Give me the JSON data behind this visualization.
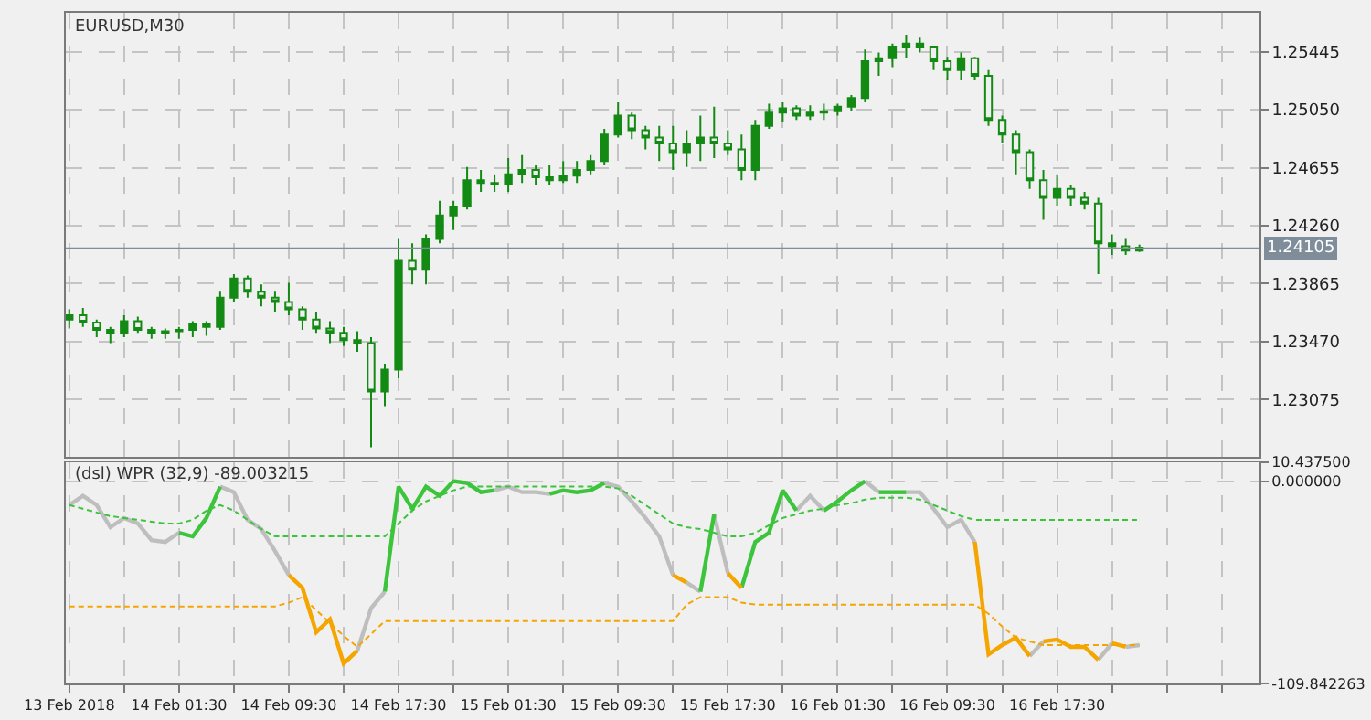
{
  "chart_data": [
    {
      "type": "candlestick",
      "title": "EURUSD,M30",
      "x": [
        "2018-02-13T17:30",
        "2018-02-13T18:30",
        "2018-02-13T19:30",
        "2018-02-13T20:30",
        "2018-02-13T21:30",
        "2018-02-13T22:30",
        "2018-02-13T23:30",
        "2018-02-14T00:30",
        "2018-02-14T01:30",
        "2018-02-14T02:30",
        "2018-02-14T03:30",
        "2018-02-14T04:30",
        "2018-02-14T05:30",
        "2018-02-14T06:30",
        "2018-02-14T07:30",
        "2018-02-14T08:30",
        "2018-02-14T09:30",
        "2018-02-14T10:30",
        "2018-02-14T11:30",
        "2018-02-14T12:30",
        "2018-02-14T13:30",
        "2018-02-14T14:30",
        "2018-02-14T15:30",
        "2018-02-14T16:30",
        "2018-02-14T17:30",
        "2018-02-14T18:30",
        "2018-02-14T19:30",
        "2018-02-14T20:30",
        "2018-02-14T21:30",
        "2018-02-14T22:30",
        "2018-02-14T23:30",
        "2018-02-15T00:30",
        "2018-02-15T01:30",
        "2018-02-15T02:30",
        "2018-02-15T03:30",
        "2018-02-15T04:30",
        "2018-02-15T05:30",
        "2018-02-15T06:30",
        "2018-02-15T07:30",
        "2018-02-15T08:30",
        "2018-02-15T09:30",
        "2018-02-15T10:30",
        "2018-02-15T11:30",
        "2018-02-15T12:30",
        "2018-02-15T13:30",
        "2018-02-15T14:30",
        "2018-02-15T15:30",
        "2018-02-15T16:30",
        "2018-02-15T17:30",
        "2018-02-15T18:30",
        "2018-02-15T19:30",
        "2018-02-15T20:30",
        "2018-02-15T21:30",
        "2018-02-15T22:30",
        "2018-02-15T23:30",
        "2018-02-16T00:30",
        "2018-02-16T01:30",
        "2018-02-16T02:30",
        "2018-02-16T03:30",
        "2018-02-16T04:30",
        "2018-02-16T05:30",
        "2018-02-16T06:30",
        "2018-02-16T07:30",
        "2018-02-16T08:30",
        "2018-02-16T09:30",
        "2018-02-16T10:30",
        "2018-02-16T11:30",
        "2018-02-16T12:30",
        "2018-02-16T13:30",
        "2018-02-16T14:30",
        "2018-02-16T15:30",
        "2018-02-16T16:30",
        "2018-02-16T17:30",
        "2018-02-16T18:30",
        "2018-02-16T19:30",
        "2018-02-16T20:30",
        "2018-02-16T21:30",
        "2018-02-16T22:30",
        "2018-02-16T23:30"
      ],
      "ohlc": [
        [
          1.2362,
          1.2369,
          1.2356,
          1.2365
        ],
        [
          1.2365,
          1.237,
          1.2357,
          1.236
        ],
        [
          1.236,
          1.2362,
          1.235,
          1.2355
        ],
        [
          1.2355,
          1.2357,
          1.2346,
          1.2353
        ],
        [
          1.2353,
          1.2365,
          1.235,
          1.2361
        ],
        [
          1.2361,
          1.2364,
          1.2353,
          1.2355
        ],
        [
          1.2355,
          1.2357,
          1.2349,
          1.2353
        ],
        [
          1.2353,
          1.2356,
          1.2349,
          1.2354
        ],
        [
          1.2354,
          1.2357,
          1.2349,
          1.2355
        ],
        [
          1.2355,
          1.2361,
          1.235,
          1.2359
        ],
        [
          1.2359,
          1.2361,
          1.2351,
          1.2357
        ],
        [
          1.2357,
          1.2381,
          1.2355,
          1.2377
        ],
        [
          1.2377,
          1.2393,
          1.2374,
          1.239
        ],
        [
          1.239,
          1.2392,
          1.2377,
          1.2381
        ],
        [
          1.2381,
          1.2386,
          1.2371,
          1.2377
        ],
        [
          1.2377,
          1.2381,
          1.2367,
          1.2374
        ],
        [
          1.2374,
          1.2387,
          1.2365,
          1.2369
        ],
        [
          1.2369,
          1.2371,
          1.2355,
          1.2362
        ],
        [
          1.2362,
          1.2367,
          1.2353,
          1.2356
        ],
        [
          1.2356,
          1.2361,
          1.2346,
          1.2353
        ],
        [
          1.2353,
          1.2357,
          1.2344,
          1.2348
        ],
        [
          1.2348,
          1.2354,
          1.234,
          1.2346
        ],
        [
          1.2346,
          1.235,
          1.2275,
          1.2313
        ],
        [
          1.2313,
          1.2332,
          1.2303,
          1.2328
        ],
        [
          1.2328,
          1.2417,
          1.2322,
          1.2402
        ],
        [
          1.2402,
          1.2414,
          1.2386,
          1.2396
        ],
        [
          1.2396,
          1.242,
          1.2386,
          1.2417
        ],
        [
          1.2417,
          1.2443,
          1.2414,
          1.2433
        ],
        [
          1.2433,
          1.2443,
          1.2423,
          1.2439
        ],
        [
          1.2439,
          1.2466,
          1.2437,
          1.2457
        ],
        [
          1.2457,
          1.2464,
          1.2449,
          1.2455
        ],
        [
          1.2455,
          1.2461,
          1.2449,
          1.2454
        ],
        [
          1.2454,
          1.2472,
          1.2449,
          1.2461
        ],
        [
          1.2461,
          1.2474,
          1.2455,
          1.2464
        ],
        [
          1.2464,
          1.2467,
          1.2454,
          1.2459
        ],
        [
          1.2459,
          1.2467,
          1.2454,
          1.2457
        ],
        [
          1.2457,
          1.247,
          1.2455,
          1.246
        ],
        [
          1.246,
          1.247,
          1.2455,
          1.2464
        ],
        [
          1.2464,
          1.2474,
          1.2461,
          1.247
        ],
        [
          1.247,
          1.2492,
          1.2467,
          1.2488
        ],
        [
          1.2488,
          1.251,
          1.2486,
          1.2501
        ],
        [
          1.2501,
          1.2503,
          1.2485,
          1.2491
        ],
        [
          1.2491,
          1.2494,
          1.2478,
          1.2486
        ],
        [
          1.2486,
          1.2494,
          1.247,
          1.2482
        ],
        [
          1.2482,
          1.2494,
          1.2464,
          1.2476
        ],
        [
          1.2476,
          1.2491,
          1.2466,
          1.2482
        ],
        [
          1.2482,
          1.2501,
          1.247,
          1.2486
        ],
        [
          1.2486,
          1.2507,
          1.2472,
          1.2482
        ],
        [
          1.2482,
          1.2491,
          1.2474,
          1.2478
        ],
        [
          1.2478,
          1.2488,
          1.2457,
          1.2464
        ],
        [
          1.2464,
          1.2498,
          1.2457,
          1.2494
        ],
        [
          1.2494,
          1.2509,
          1.2492,
          1.2503
        ],
        [
          1.2503,
          1.251,
          1.2497,
          1.2506
        ],
        [
          1.2506,
          1.2508,
          1.2498,
          1.2501
        ],
        [
          1.2501,
          1.2508,
          1.2498,
          1.2503
        ],
        [
          1.2503,
          1.2509,
          1.2498,
          1.2504
        ],
        [
          1.2504,
          1.2509,
          1.2501,
          1.2507
        ],
        [
          1.2507,
          1.2515,
          1.2504,
          1.2513
        ],
        [
          1.2513,
          1.2546,
          1.251,
          1.2538
        ],
        [
          1.2538,
          1.2544,
          1.2528,
          1.254
        ],
        [
          1.254,
          1.255,
          1.2534,
          1.2548
        ],
        [
          1.2548,
          1.2556,
          1.254,
          1.255
        ],
        [
          1.255,
          1.2554,
          1.2544,
          1.2548
        ],
        [
          1.2548,
          1.2548,
          1.2532,
          1.2538
        ],
        [
          1.2538,
          1.2541,
          1.2525,
          1.2532
        ],
        [
          1.2532,
          1.2544,
          1.2525,
          1.254
        ],
        [
          1.254,
          1.2541,
          1.2525,
          1.2528
        ],
        [
          1.2528,
          1.2532,
          1.2494,
          1.2498
        ],
        [
          1.2498,
          1.2501,
          1.2482,
          1.2488
        ],
        [
          1.2488,
          1.2491,
          1.2461,
          1.2476
        ],
        [
          1.2476,
          1.2478,
          1.2451,
          1.2457
        ],
        [
          1.2457,
          1.2464,
          1.243,
          1.2445
        ],
        [
          1.2445,
          1.2461,
          1.2439,
          1.2451
        ],
        [
          1.2451,
          1.2454,
          1.2439,
          1.2445
        ],
        [
          1.2445,
          1.2449,
          1.2437,
          1.2441
        ],
        [
          1.2441,
          1.2445,
          1.2393,
          1.2414
        ],
        [
          1.2414,
          1.242,
          1.2406,
          1.2412
        ],
        [
          1.2412,
          1.2417,
          1.2406,
          1.2409
        ],
        [
          1.2409,
          1.2413,
          1.2408,
          1.2411
        ]
      ],
      "color": "#138a13",
      "xlim": [
        "2018-02-13T17:15",
        "2018-02-17T08:15"
      ],
      "xticks": [
        {
          "value": "2018-02-13T17:30",
          "label": null
        },
        {
          "value": "2018-02-13T21:30",
          "label": null
        },
        {
          "value": "2018-02-14T01:30",
          "label": null
        },
        {
          "value": "2018-02-14T05:30",
          "label": null
        },
        {
          "value": "2018-02-14T09:30",
          "label": null
        },
        {
          "value": "2018-02-14T13:30",
          "label": null
        },
        {
          "value": "2018-02-14T17:30",
          "label": null
        },
        {
          "value": "2018-02-14T21:30",
          "label": null
        },
        {
          "value": "2018-02-15T01:30",
          "label": null
        },
        {
          "value": "2018-02-15T05:30",
          "label": null
        },
        {
          "value": "2018-02-15T09:30",
          "label": null
        },
        {
          "value": "2018-02-15T13:30",
          "label": null
        },
        {
          "value": "2018-02-15T17:30",
          "label": null
        },
        {
          "value": "2018-02-15T21:30",
          "label": null
        },
        {
          "value": "2018-02-16T01:30",
          "label": null
        },
        {
          "value": "2018-02-16T05:30",
          "label": null
        },
        {
          "value": "2018-02-16T09:30",
          "label": null
        },
        {
          "value": "2018-02-16T13:30",
          "label": null
        },
        {
          "value": "2018-02-16T17:30",
          "label": null
        },
        {
          "value": "2018-02-16T21:30",
          "label": null
        },
        {
          "value": "2018-02-17T01:30",
          "label": null
        },
        {
          "value": "2018-02-17T05:30",
          "label": null
        }
      ],
      "ylim": [
        1.22687,
        1.2571
      ],
      "yticks": [
        {
          "value": 1.23075,
          "label": "1.23075"
        },
        {
          "value": 1.2347,
          "label": "1.23470"
        },
        {
          "value": 1.23865,
          "label": "1.23865"
        },
        {
          "value": 1.2426,
          "label": "1.24260"
        },
        {
          "value": 1.24655,
          "label": "1.24655"
        },
        {
          "value": 1.2505,
          "label": "1.25050"
        },
        {
          "value": 1.25445,
          "label": "1.25445"
        }
      ],
      "ref_lines": [
        {
          "axis": "y",
          "value": 1.24105,
          "label": "1.24105",
          "color": "#7f8c99"
        }
      ],
      "grid": true,
      "tick_labels": "y"
    },
    {
      "type": "line",
      "title": "(dsl) WPR (32,9) -89.003215",
      "x": [
        "2018-02-13T17:30",
        "2018-02-13T18:30",
        "2018-02-13T19:30",
        "2018-02-13T20:30",
        "2018-02-13T21:30",
        "2018-02-13T22:30",
        "2018-02-13T23:30",
        "2018-02-14T00:30",
        "2018-02-14T01:30",
        "2018-02-14T02:30",
        "2018-02-14T03:30",
        "2018-02-14T04:30",
        "2018-02-14T05:30",
        "2018-02-14T06:30",
        "2018-02-14T07:30",
        "2018-02-14T08:30",
        "2018-02-14T09:30",
        "2018-02-14T10:30",
        "2018-02-14T11:30",
        "2018-02-14T12:30",
        "2018-02-14T13:30",
        "2018-02-14T14:30",
        "2018-02-14T15:30",
        "2018-02-14T16:30",
        "2018-02-14T17:30",
        "2018-02-14T18:30",
        "2018-02-14T19:30",
        "2018-02-14T20:30",
        "2018-02-14T21:30",
        "2018-02-14T22:30",
        "2018-02-14T23:30",
        "2018-02-15T00:30",
        "2018-02-15T01:30",
        "2018-02-15T02:30",
        "2018-02-15T03:30",
        "2018-02-15T04:30",
        "2018-02-15T05:30",
        "2018-02-15T06:30",
        "2018-02-15T07:30",
        "2018-02-15T08:30",
        "2018-02-15T09:30",
        "2018-02-15T10:30",
        "2018-02-15T11:30",
        "2018-02-15T12:30",
        "2018-02-15T13:30",
        "2018-02-15T14:30",
        "2018-02-15T15:30",
        "2018-02-15T16:30",
        "2018-02-15T17:30",
        "2018-02-15T18:30",
        "2018-02-15T19:30",
        "2018-02-15T20:30",
        "2018-02-15T21:30",
        "2018-02-15T22:30",
        "2018-02-15T23:30",
        "2018-02-16T00:30",
        "2018-02-16T01:30",
        "2018-02-16T02:30",
        "2018-02-16T03:30",
        "2018-02-16T04:30",
        "2018-02-16T05:30",
        "2018-02-16T06:30",
        "2018-02-16T07:30",
        "2018-02-16T08:30",
        "2018-02-16T09:30",
        "2018-02-16T10:30",
        "2018-02-16T11:30",
        "2018-02-16T12:30",
        "2018-02-16T13:30",
        "2018-02-16T14:30",
        "2018-02-16T15:30",
        "2018-02-16T16:30",
        "2018-02-16T17:30",
        "2018-02-16T18:30",
        "2018-02-16T19:30",
        "2018-02-16T20:30",
        "2018-02-16T21:30",
        "2018-02-16T22:30",
        "2018-02-16T23:30"
      ],
      "series": [
        {
          "color": "#3cc43c",
          "line_style": "dashed",
          "values": [
            -13,
            -15,
            -17,
            -19,
            -20,
            -21,
            -22,
            -23,
            -23,
            -21,
            -16,
            -13,
            -16,
            -21,
            -26,
            -30,
            -30,
            -30,
            -30,
            -30,
            -30,
            -30,
            -30,
            -30,
            -23,
            -16,
            -11,
            -8,
            -5,
            -3,
            -3,
            -3,
            -3,
            -3,
            -3,
            -3,
            -3,
            -3,
            -3,
            -3,
            -4,
            -8,
            -13,
            -18,
            -23,
            -25,
            -26,
            -28,
            -30,
            -30,
            -28,
            -24,
            -20,
            -18,
            -16,
            -15,
            -13,
            -12,
            -10,
            -9,
            -9,
            -9,
            -10,
            -13,
            -16,
            -19,
            -21,
            -21,
            -21,
            -21,
            -21,
            -21,
            -21,
            -21,
            -21,
            -21,
            -21,
            -21,
            -21
          ]
        },
        {
          "color": "#f5a500",
          "line_style": "dashed",
          "values": [
            -68,
            -68,
            -68,
            -68,
            -68,
            -68,
            -68,
            -68,
            -68,
            -68,
            -68,
            -68,
            -68,
            -68,
            -68,
            -68,
            -66,
            -63,
            -70,
            -77,
            -84,
            -90,
            -83,
            -76,
            -76,
            -76,
            -76,
            -76,
            -76,
            -76,
            -76,
            -76,
            -76,
            -76,
            -76,
            -76,
            -76,
            -76,
            -76,
            -76,
            -76,
            -76,
            -76,
            -76,
            -76,
            -67,
            -63,
            -63,
            -63,
            -66,
            -67,
            -67,
            -67,
            -67,
            -67,
            -67,
            -67,
            -67,
            -67,
            -67,
            -67,
            -67,
            -67,
            -67,
            -67,
            -67,
            -67,
            -72,
            -79,
            -85,
            -87,
            -89,
            -89,
            -89,
            -89,
            -89,
            -89,
            -89,
            -89
          ]
        },
        {
          "color": "#bebebe",
          "x": [
            "2018-02-13T17:30",
            "2018-02-13T18:30",
            "2018-02-13T19:30",
            "2018-02-13T20:30",
            "2018-02-13T21:30",
            "2018-02-13T22:30",
            "2018-02-13T23:30",
            "2018-02-14T00:30",
            "2018-02-14T01:30"
          ],
          "values": [
            -13,
            -8,
            -13,
            -25,
            -20,
            -23,
            -32,
            -33,
            -28
          ]
        },
        {
          "color": "#bebebe",
          "x": [
            "2018-02-14T04:30",
            "2018-02-14T05:30",
            "2018-02-14T06:30",
            "2018-02-14T07:30",
            "2018-02-14T08:30",
            "2018-02-14T09:30"
          ],
          "values": [
            -3,
            -6,
            -21,
            -26,
            -38,
            -51
          ]
        },
        {
          "color": "#bebebe",
          "x": [
            "2018-02-14T14:30",
            "2018-02-14T15:30",
            "2018-02-14T16:30"
          ],
          "values": [
            -92,
            -69,
            -60
          ]
        },
        {
          "color": "#bebebe",
          "x": [
            "2018-02-15T00:30",
            "2018-02-15T01:30",
            "2018-02-15T02:30",
            "2018-02-15T03:30",
            "2018-02-15T04:30"
          ],
          "values": [
            -5,
            -3,
            -6,
            -6,
            -7
          ]
        },
        {
          "color": "#bebebe",
          "x": [
            "2018-02-15T08:30",
            "2018-02-15T09:30",
            "2018-02-15T10:30",
            "2018-02-15T11:30",
            "2018-02-15T12:30",
            "2018-02-15T13:30"
          ],
          "values": [
            -1,
            -3,
            -11,
            -20,
            -30,
            -51
          ]
        },
        {
          "color": "#bebebe",
          "x": [
            "2018-02-15T14:30",
            "2018-02-15T15:30"
          ],
          "values": [
            -55,
            -60
          ]
        },
        {
          "color": "#bebebe",
          "x": [
            "2018-02-15T16:30",
            "2018-02-15T17:30"
          ],
          "values": [
            -18,
            -50
          ]
        },
        {
          "color": "#bebebe",
          "x": [
            "2018-02-15T22:30",
            "2018-02-15T23:30",
            "2018-02-16T00:30"
          ],
          "values": [
            -16,
            -8,
            -16
          ]
        },
        {
          "color": "#bebebe",
          "x": [
            "2018-02-16T03:30",
            "2018-02-16T04:30"
          ],
          "values": [
            0,
            -6
          ]
        },
        {
          "color": "#bebebe",
          "x": [
            "2018-02-16T06:30",
            "2018-02-16T07:30",
            "2018-02-16T08:30",
            "2018-02-16T09:30",
            "2018-02-16T10:30",
            "2018-02-16T11:30"
          ],
          "values": [
            -6,
            -6,
            -15,
            -25,
            -21,
            -33
          ]
        },
        {
          "color": "#bebebe",
          "x": [
            "2018-02-16T15:30",
            "2018-02-16T16:30"
          ],
          "values": [
            -95,
            -87
          ]
        },
        {
          "color": "#bebebe",
          "x": [
            "2018-02-16T20:30",
            "2018-02-16T21:30"
          ],
          "values": [
            -97,
            -88
          ]
        },
        {
          "color": "#bebebe",
          "x": [
            "2018-02-16T22:30",
            "2018-02-16T23:30"
          ],
          "values": [
            -90,
            -89
          ]
        },
        {
          "color": "#3cc43c",
          "x": [
            "2018-02-14T01:30",
            "2018-02-14T02:30",
            "2018-02-14T03:30",
            "2018-02-14T04:30"
          ],
          "values": [
            -28,
            -30,
            -20,
            -3
          ]
        },
        {
          "color": "#3cc43c",
          "x": [
            "2018-02-14T16:30",
            "2018-02-14T17:30",
            "2018-02-14T18:30",
            "2018-02-14T19:30",
            "2018-02-14T20:30",
            "2018-02-14T21:30",
            "2018-02-14T22:30",
            "2018-02-14T23:30",
            "2018-02-15T00:30"
          ],
          "values": [
            -60,
            -3,
            -15,
            -3,
            -8,
            0,
            -1,
            -6,
            -5
          ]
        },
        {
          "color": "#3cc43c",
          "x": [
            "2018-02-15T04:30",
            "2018-02-15T05:30",
            "2018-02-15T06:30",
            "2018-02-15T07:30",
            "2018-02-15T08:30"
          ],
          "values": [
            -7,
            -5,
            -6,
            -5,
            -1
          ]
        },
        {
          "color": "#3cc43c",
          "x": [
            "2018-02-15T15:30",
            "2018-02-15T16:30"
          ],
          "values": [
            -60,
            -18
          ]
        },
        {
          "color": "#3cc43c",
          "x": [
            "2018-02-15T18:30",
            "2018-02-15T19:30",
            "2018-02-15T20:30",
            "2018-02-15T21:30",
            "2018-02-15T22:30"
          ],
          "values": [
            -58,
            -33,
            -28,
            -5,
            -16
          ]
        },
        {
          "color": "#3cc43c",
          "x": [
            "2018-02-16T00:30",
            "2018-02-16T01:30",
            "2018-02-16T02:30",
            "2018-02-16T03:30"
          ],
          "values": [
            -16,
            -11,
            -5,
            0
          ]
        },
        {
          "color": "#3cc43c",
          "x": [
            "2018-02-16T04:30",
            "2018-02-16T05:30",
            "2018-02-16T06:30"
          ],
          "values": [
            -6,
            -6,
            -6
          ]
        },
        {
          "color": "#f5a500",
          "x": [
            "2018-02-14T09:30",
            "2018-02-14T10:30",
            "2018-02-14T11:30",
            "2018-02-14T12:30",
            "2018-02-14T13:30",
            "2018-02-14T14:30"
          ],
          "values": [
            -51,
            -58,
            -82,
            -75,
            -99,
            -92
          ]
        },
        {
          "color": "#f5a500",
          "x": [
            "2018-02-15T13:30",
            "2018-02-15T14:30"
          ],
          "values": [
            -51,
            -55
          ]
        },
        {
          "color": "#f5a500",
          "x": [
            "2018-02-15T17:30",
            "2018-02-15T18:30"
          ],
          "values": [
            -50,
            -58
          ]
        },
        {
          "color": "#f5a500",
          "x": [
            "2018-02-16T11:30",
            "2018-02-16T12:30",
            "2018-02-16T13:30",
            "2018-02-16T14:30",
            "2018-02-16T15:30"
          ],
          "values": [
            -33,
            -94,
            -89,
            -85,
            -95
          ]
        },
        {
          "color": "#f5a500",
          "x": [
            "2018-02-16T16:30",
            "2018-02-16T17:30",
            "2018-02-16T18:30",
            "2018-02-16T19:30",
            "2018-02-16T20:30"
          ],
          "values": [
            -87,
            -86,
            -90,
            -90,
            -97
          ]
        },
        {
          "color": "#f5a500",
          "x": [
            "2018-02-16T21:30",
            "2018-02-16T22:30"
          ],
          "values": [
            -88,
            -90
          ]
        }
      ],
      "xlim": [
        "2018-02-13T17:15",
        "2018-02-17T08:15"
      ],
      "xticks": [
        {
          "value": "2018-02-13T17:30",
          "label": "13 Feb 2018"
        },
        {
          "value": "2018-02-13T21:30",
          "label": null
        },
        {
          "value": "2018-02-14T01:30",
          "label": "14 Feb 01:30"
        },
        {
          "value": "2018-02-14T05:30",
          "label": null
        },
        {
          "value": "2018-02-14T09:30",
          "label": "14 Feb 09:30"
        },
        {
          "value": "2018-02-14T13:30",
          "label": null
        },
        {
          "value": "2018-02-14T17:30",
          "label": "14 Feb 17:30"
        },
        {
          "value": "2018-02-14T21:30",
          "label": null
        },
        {
          "value": "2018-02-15T01:30",
          "label": "15 Feb 01:30"
        },
        {
          "value": "2018-02-15T05:30",
          "label": null
        },
        {
          "value": "2018-02-15T09:30",
          "label": "15 Feb 09:30"
        },
        {
          "value": "2018-02-15T13:30",
          "label": null
        },
        {
          "value": "2018-02-15T17:30",
          "label": "15 Feb 17:30"
        },
        {
          "value": "2018-02-15T21:30",
          "label": null
        },
        {
          "value": "2018-02-16T01:30",
          "label": "16 Feb 01:30"
        },
        {
          "value": "2018-02-16T05:30",
          "label": null
        },
        {
          "value": "2018-02-16T09:30",
          "label": "16 Feb 09:30"
        },
        {
          "value": "2018-02-16T13:30",
          "label": null
        },
        {
          "value": "2018-02-16T17:30",
          "label": "16 Feb 17:30"
        },
        {
          "value": "2018-02-16T21:30",
          "label": null
        },
        {
          "value": "2018-02-17T01:30",
          "label": null
        },
        {
          "value": "2018-02-17T05:30",
          "label": null
        }
      ],
      "ylim": [
        -109.842263,
        10.4375
      ],
      "yticks": [
        {
          "value": -109.842263,
          "label": "-109.842263"
        },
        {
          "value": 0,
          "label": "0.000000"
        },
        {
          "value": 10.4375,
          "label": "10.437500"
        }
      ],
      "grid": true
    }
  ]
}
